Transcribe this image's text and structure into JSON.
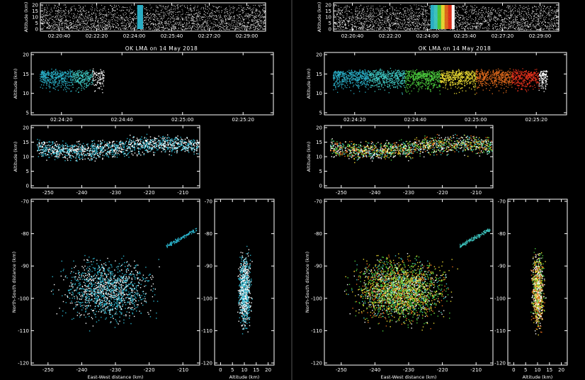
{
  "colors": {
    "background": "#000000",
    "frame": "#ffffff",
    "cyan": "#2ab0c8",
    "teal": "#3ec6c0",
    "green": "#4ac83c",
    "yellow": "#e8d832",
    "orange": "#e06a1c",
    "red": "#e0301c",
    "white": "#ffffff"
  },
  "chart_data": [
    {
      "type": "scatter",
      "panel_set": "left",
      "title": "OK LMA on 14 May 2018",
      "subplots": {
        "altitude_time_overview": {
          "ylabel": "Altitude (km)",
          "yticks": [
            "0",
            "5",
            "10",
            "15",
            "20"
          ],
          "xticks": [
            "02:20:40",
            "02:22:20",
            "02:24:00",
            "02:25:40",
            "02:27:20",
            "02:29:00"
          ],
          "highlight_band_time": "02:24:10"
        },
        "altitude_time_zoom": {
          "ylabel": "Altitude (km)",
          "yticks": [
            "5",
            "10",
            "15",
            "20"
          ],
          "xticks": [
            "02:24:20",
            "02:24:40",
            "02:25:00",
            "02:25:20"
          ]
        },
        "altitude_ew": {
          "ylabel": "Altitude (km)",
          "yticks": [
            "0",
            "5",
            "10",
            "15",
            "20"
          ],
          "xticks": [
            "-250",
            "-240",
            "-230",
            "-220",
            "-210"
          ]
        },
        "plan_view": {
          "xlabel": "East-West distance (km)",
          "ylabel": "North-South distance (km)",
          "xticks": [
            "-250",
            "-240",
            "-230",
            "-220",
            "-210"
          ],
          "yticks": [
            "-70",
            "-80",
            "-90",
            "-100",
            "-110",
            "-120"
          ]
        },
        "ns_altitude": {
          "xlabel": "Altitude (km)",
          "xticks": [
            "0",
            "5",
            "10",
            "15",
            "20"
          ],
          "yticks": [
            "-70",
            "-80",
            "-90",
            "-100",
            "-110",
            "-120"
          ]
        }
      },
      "color_scale": [
        "cyan",
        "white"
      ]
    },
    {
      "type": "scatter",
      "panel_set": "right",
      "title": "OK LMA on 14 May 2018",
      "subplots": {
        "altitude_time_overview": {
          "ylabel": "Altitude (km)",
          "yticks": [
            "0",
            "5",
            "10",
            "15",
            "20"
          ],
          "xticks": [
            "02:20:40",
            "02:22:20",
            "02:24:00",
            "02:25:40",
            "02:27:20",
            "02:29:00"
          ],
          "highlight_band_time": "02:24:10-02:25:20"
        },
        "altitude_time_zoom": {
          "ylabel": "Altitude (km)",
          "yticks": [
            "5",
            "10",
            "15",
            "20"
          ],
          "xticks": [
            "02:24:20",
            "02:24:40",
            "02:25:00",
            "02:25:20"
          ]
        },
        "altitude_ew": {
          "ylabel": "Altitude (km)",
          "yticks": [
            "0",
            "5",
            "10",
            "15",
            "20"
          ],
          "xticks": [
            "-250",
            "-240",
            "-230",
            "-220",
            "-210"
          ]
        },
        "plan_view": {
          "xlabel": "East-West distance (km)",
          "ylabel": "North-South distance (km)",
          "xticks": [
            "-250",
            "-240",
            "-230",
            "-220",
            "-210"
          ],
          "yticks": [
            "-70",
            "-80",
            "-90",
            "-100",
            "-110",
            "-120"
          ]
        },
        "ns_altitude": {
          "xlabel": "Altitude (km)",
          "xticks": [
            "0",
            "5",
            "10",
            "15",
            "20"
          ],
          "yticks": [
            "-70",
            "-80",
            "-90",
            "-100",
            "-110",
            "-120"
          ]
        }
      },
      "color_scale": [
        "cyan",
        "teal",
        "green",
        "yellow",
        "orange",
        "red",
        "white"
      ]
    }
  ]
}
